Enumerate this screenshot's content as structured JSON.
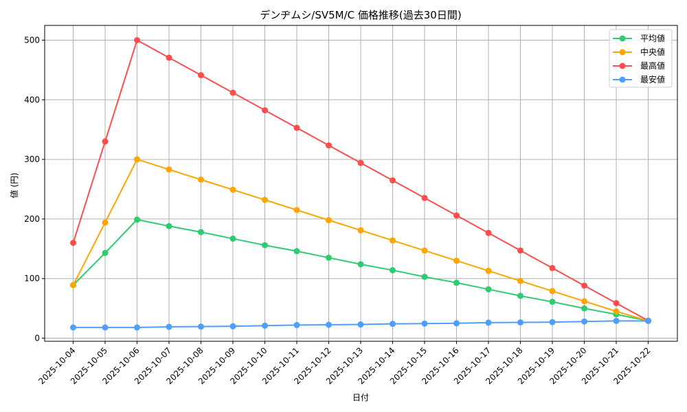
{
  "chart_data": {
    "type": "line",
    "title": "デンヂムシ/SV5M/C 価格推移(過去30日間)",
    "xlabel": "日付",
    "ylabel": "値 (円)",
    "ylim": [
      -5,
      525
    ],
    "yticks": [
      0,
      100,
      200,
      300,
      400,
      500
    ],
    "grid": true,
    "legend_position": "upper right",
    "categories": [
      "2025-10-04",
      "2025-10-05",
      "2025-10-06",
      "2025-10-07",
      "2025-10-08",
      "2025-10-09",
      "2025-10-10",
      "2025-10-11",
      "2025-10-12",
      "2025-10-13",
      "2025-10-14",
      "2025-10-15",
      "2025-10-16",
      "2025-10-17",
      "2025-10-18",
      "2025-10-19",
      "2025-10-20",
      "2025-10-21",
      "2025-10-22"
    ],
    "series": [
      {
        "name": "平均値",
        "color": "#2ecc71",
        "values": [
          89,
          143,
          199,
          188,
          178,
          167,
          156,
          146,
          135,
          124,
          114,
          103,
          93,
          82,
          71,
          61,
          50,
          40,
          29
        ]
      },
      {
        "name": "中央値",
        "color": "#ffa500",
        "values": [
          89,
          194,
          300,
          283,
          266,
          249,
          232,
          215,
          198,
          181,
          164,
          147,
          130,
          113,
          96,
          79,
          62,
          45,
          29
        ]
      },
      {
        "name": "最高値",
        "color": "#ff4d4d",
        "values": [
          160,
          330,
          500,
          470.6,
          441.2,
          411.8,
          382.4,
          352.9,
          323.5,
          294.1,
          264.7,
          235.3,
          205.9,
          176.5,
          147.1,
          117.6,
          88.2,
          58.8,
          29.4
        ]
      },
      {
        "name": "最安値",
        "color": "#4d9fff",
        "values": [
          18,
          18,
          18,
          19,
          19.5,
          20,
          21,
          22,
          22.5,
          23,
          24,
          24.5,
          25,
          26,
          26.5,
          27,
          28,
          29,
          29
        ]
      }
    ]
  }
}
